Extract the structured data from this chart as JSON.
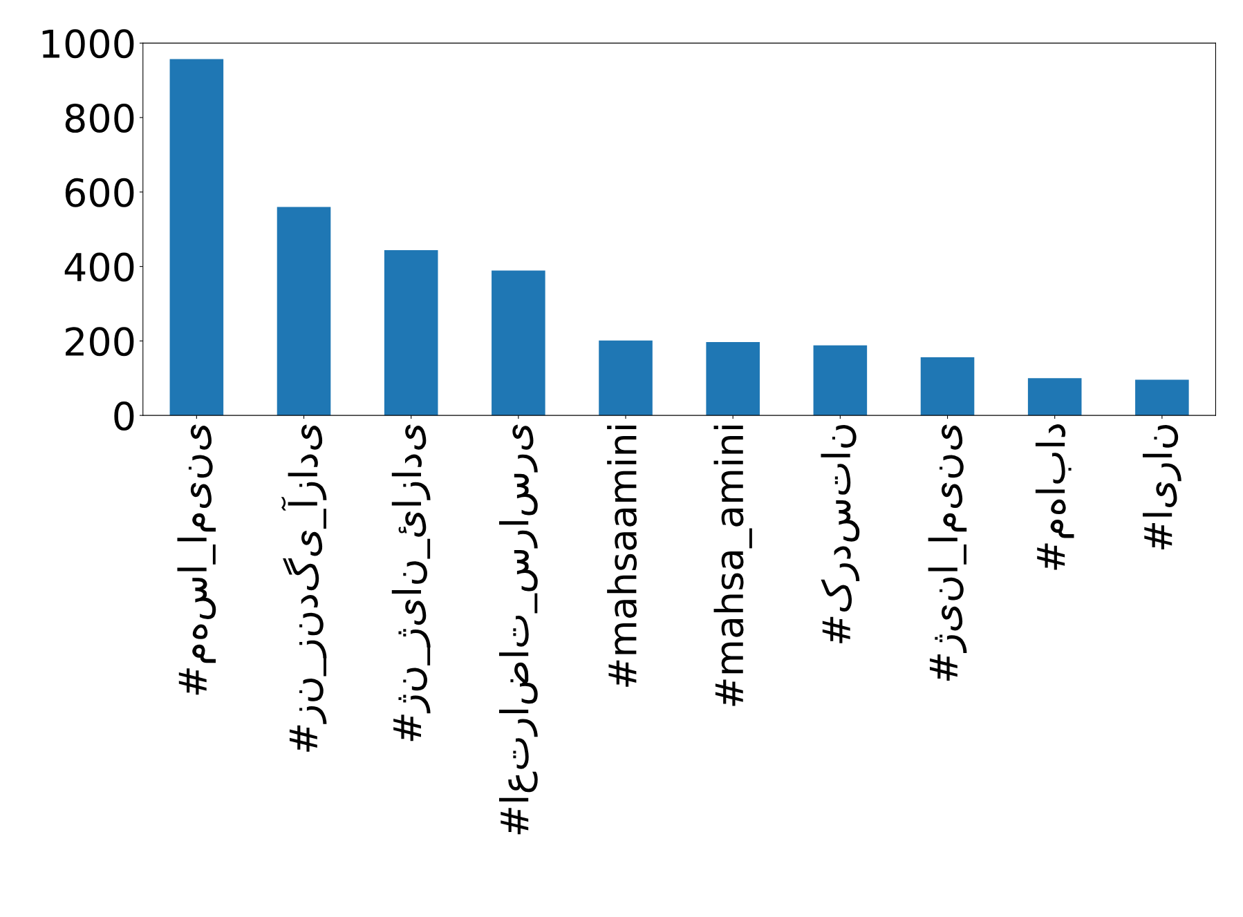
{
  "chart_data": {
    "type": "bar",
    "categories": [
      "#مهسا_امینی",
      "#زن_زندگی_آزادی",
      "#ژن_ژیان_ئازادی",
      "#اعتراضات_سراسری",
      "#mahsaamini",
      "#mahsa_amini",
      "#کردستان",
      "#ژینا_امینی",
      "#مهاباد",
      "#ایران"
    ],
    "values": [
      957,
      560,
      444,
      389,
      201,
      197,
      188,
      156,
      100,
      96
    ],
    "color": "#1f77b4",
    "ylim": [
      0,
      1000
    ],
    "yticks": [
      0,
      200,
      400,
      600,
      800,
      1000
    ],
    "grid": false,
    "legend": false
  }
}
